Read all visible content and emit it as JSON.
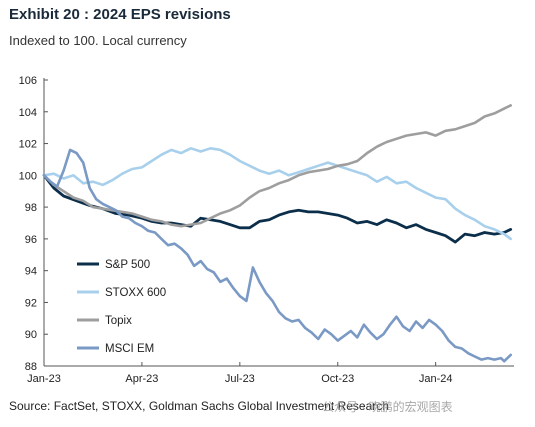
{
  "header": {
    "title": "Exhibit 20 : 2024 EPS revisions",
    "subtitle": "Indexed to 100. Local currency"
  },
  "footer": {
    "source": "Source: FactSet, STOXX, Goldman Sachs Global Investment Research",
    "watermark": "公众号 · 晓鹏的宏观图表"
  },
  "chart_data": {
    "type": "line",
    "title": "Exhibit 20 : 2024 EPS revisions",
    "subtitle": "Indexed to 100. Local currency",
    "xlabel": "",
    "ylabel": "",
    "x_ticks": [
      {
        "t": 0,
        "label": "Jan-23"
      },
      {
        "t": 3,
        "label": "Apr-23"
      },
      {
        "t": 6,
        "label": "Jul-23"
      },
      {
        "t": 9,
        "label": "Oct-23"
      },
      {
        "t": 12,
        "label": "Jan-24"
      }
    ],
    "xlim": [
      0,
      14.4
    ],
    "ylim": [
      88,
      106
    ],
    "y_ticks": [
      88,
      90,
      92,
      94,
      96,
      98,
      100,
      102,
      104,
      106
    ],
    "grid": false,
    "legend_position": "left-bottom",
    "series": [
      {
        "name": "S&P 500",
        "color": "#0b2e4a",
        "width": 2.8,
        "points": [
          [
            0,
            100.0
          ],
          [
            0.3,
            99.2
          ],
          [
            0.6,
            98.7
          ],
          [
            1.0,
            98.4
          ],
          [
            1.4,
            98.1
          ],
          [
            1.8,
            97.9
          ],
          [
            2.2,
            97.6
          ],
          [
            2.6,
            97.5
          ],
          [
            3.0,
            97.3
          ],
          [
            3.3,
            97.1
          ],
          [
            3.6,
            97.0
          ],
          [
            3.9,
            97.0
          ],
          [
            4.2,
            96.9
          ],
          [
            4.5,
            96.8
          ],
          [
            4.8,
            97.3
          ],
          [
            5.1,
            97.2
          ],
          [
            5.4,
            97.1
          ],
          [
            5.7,
            96.9
          ],
          [
            6.0,
            96.7
          ],
          [
            6.3,
            96.7
          ],
          [
            6.6,
            97.1
          ],
          [
            6.9,
            97.2
          ],
          [
            7.2,
            97.5
          ],
          [
            7.5,
            97.7
          ],
          [
            7.8,
            97.8
          ],
          [
            8.1,
            97.7
          ],
          [
            8.4,
            97.7
          ],
          [
            8.7,
            97.6
          ],
          [
            9.0,
            97.5
          ],
          [
            9.3,
            97.3
          ],
          [
            9.6,
            97.0
          ],
          [
            9.9,
            97.1
          ],
          [
            10.2,
            96.9
          ],
          [
            10.5,
            97.2
          ],
          [
            10.8,
            97.0
          ],
          [
            11.1,
            96.7
          ],
          [
            11.4,
            96.9
          ],
          [
            11.7,
            96.6
          ],
          [
            12.0,
            96.4
          ],
          [
            12.3,
            96.2
          ],
          [
            12.6,
            95.8
          ],
          [
            12.9,
            96.3
          ],
          [
            13.2,
            96.2
          ],
          [
            13.5,
            96.4
          ],
          [
            13.8,
            96.3
          ],
          [
            14.1,
            96.4
          ],
          [
            14.3,
            96.6
          ]
        ]
      },
      {
        "name": "STOXX 600",
        "color": "#a8d0ec",
        "width": 2.6,
        "points": [
          [
            0,
            100.0
          ],
          [
            0.3,
            100.1
          ],
          [
            0.6,
            99.8
          ],
          [
            0.9,
            100.0
          ],
          [
            1.2,
            99.5
          ],
          [
            1.5,
            99.6
          ],
          [
            1.8,
            99.4
          ],
          [
            2.1,
            99.7
          ],
          [
            2.4,
            100.1
          ],
          [
            2.7,
            100.4
          ],
          [
            3.0,
            100.5
          ],
          [
            3.3,
            100.9
          ],
          [
            3.6,
            101.3
          ],
          [
            3.9,
            101.6
          ],
          [
            4.2,
            101.4
          ],
          [
            4.5,
            101.7
          ],
          [
            4.8,
            101.5
          ],
          [
            5.1,
            101.7
          ],
          [
            5.4,
            101.6
          ],
          [
            5.7,
            101.3
          ],
          [
            6.0,
            100.9
          ],
          [
            6.3,
            100.6
          ],
          [
            6.6,
            100.3
          ],
          [
            6.9,
            100.1
          ],
          [
            7.2,
            100.3
          ],
          [
            7.5,
            100.0
          ],
          [
            7.8,
            100.2
          ],
          [
            8.1,
            100.4
          ],
          [
            8.4,
            100.6
          ],
          [
            8.7,
            100.8
          ],
          [
            9.0,
            100.6
          ],
          [
            9.3,
            100.4
          ],
          [
            9.6,
            100.2
          ],
          [
            9.9,
            100.0
          ],
          [
            10.2,
            99.6
          ],
          [
            10.5,
            99.9
          ],
          [
            10.8,
            99.5
          ],
          [
            11.1,
            99.6
          ],
          [
            11.4,
            99.2
          ],
          [
            11.7,
            98.9
          ],
          [
            12.0,
            98.6
          ],
          [
            12.3,
            98.5
          ],
          [
            12.6,
            97.9
          ],
          [
            12.9,
            97.5
          ],
          [
            13.2,
            97.2
          ],
          [
            13.5,
            96.8
          ],
          [
            13.8,
            96.6
          ],
          [
            14.1,
            96.3
          ],
          [
            14.3,
            96.0
          ]
        ]
      },
      {
        "name": "Topix",
        "color": "#9e9e9e",
        "width": 2.6,
        "points": [
          [
            0,
            100.0
          ],
          [
            0.3,
            99.4
          ],
          [
            0.6,
            99.0
          ],
          [
            0.9,
            98.6
          ],
          [
            1.2,
            98.4
          ],
          [
            1.5,
            98.0
          ],
          [
            1.8,
            97.9
          ],
          [
            2.1,
            97.8
          ],
          [
            2.4,
            97.7
          ],
          [
            2.7,
            97.6
          ],
          [
            3.0,
            97.4
          ],
          [
            3.3,
            97.2
          ],
          [
            3.6,
            97.1
          ],
          [
            3.9,
            96.9
          ],
          [
            4.2,
            96.8
          ],
          [
            4.5,
            96.9
          ],
          [
            4.8,
            97.0
          ],
          [
            5.1,
            97.3
          ],
          [
            5.4,
            97.6
          ],
          [
            5.7,
            97.8
          ],
          [
            6.0,
            98.1
          ],
          [
            6.3,
            98.6
          ],
          [
            6.6,
            99.0
          ],
          [
            6.9,
            99.2
          ],
          [
            7.2,
            99.5
          ],
          [
            7.5,
            99.7
          ],
          [
            7.8,
            100.0
          ],
          [
            8.1,
            100.2
          ],
          [
            8.4,
            100.3
          ],
          [
            8.7,
            100.4
          ],
          [
            9.0,
            100.6
          ],
          [
            9.3,
            100.7
          ],
          [
            9.6,
            100.9
          ],
          [
            9.9,
            101.4
          ],
          [
            10.2,
            101.8
          ],
          [
            10.5,
            102.1
          ],
          [
            10.8,
            102.3
          ],
          [
            11.1,
            102.5
          ],
          [
            11.4,
            102.6
          ],
          [
            11.7,
            102.7
          ],
          [
            12.0,
            102.5
          ],
          [
            12.3,
            102.8
          ],
          [
            12.6,
            102.9
          ],
          [
            12.9,
            103.1
          ],
          [
            13.2,
            103.3
          ],
          [
            13.5,
            103.7
          ],
          [
            13.8,
            103.9
          ],
          [
            14.1,
            104.2
          ],
          [
            14.3,
            104.4
          ]
        ]
      },
      {
        "name": "MSCI EM",
        "color": "#7a99c4",
        "width": 2.6,
        "points": [
          [
            0,
            100.0
          ],
          [
            0.2,
            99.6
          ],
          [
            0.4,
            99.3
          ],
          [
            0.6,
            100.3
          ],
          [
            0.8,
            101.6
          ],
          [
            1.0,
            101.4
          ],
          [
            1.2,
            100.8
          ],
          [
            1.4,
            99.2
          ],
          [
            1.6,
            98.5
          ],
          [
            1.8,
            98.2
          ],
          [
            2.0,
            98.0
          ],
          [
            2.2,
            97.8
          ],
          [
            2.4,
            97.4
          ],
          [
            2.6,
            97.3
          ],
          [
            2.8,
            97.0
          ],
          [
            3.0,
            96.8
          ],
          [
            3.2,
            96.5
          ],
          [
            3.4,
            96.4
          ],
          [
            3.6,
            96.0
          ],
          [
            3.8,
            95.6
          ],
          [
            4.0,
            95.7
          ],
          [
            4.2,
            95.4
          ],
          [
            4.4,
            95.0
          ],
          [
            4.6,
            94.3
          ],
          [
            4.8,
            94.6
          ],
          [
            5.0,
            94.1
          ],
          [
            5.2,
            93.9
          ],
          [
            5.4,
            93.3
          ],
          [
            5.6,
            93.5
          ],
          [
            5.8,
            92.9
          ],
          [
            6.0,
            92.4
          ],
          [
            6.2,
            92.1
          ],
          [
            6.4,
            94.2
          ],
          [
            6.6,
            93.3
          ],
          [
            6.8,
            92.6
          ],
          [
            7.0,
            92.1
          ],
          [
            7.2,
            91.4
          ],
          [
            7.4,
            91.0
          ],
          [
            7.6,
            90.8
          ],
          [
            7.8,
            90.9
          ],
          [
            8.0,
            90.4
          ],
          [
            8.2,
            90.1
          ],
          [
            8.4,
            89.7
          ],
          [
            8.6,
            90.3
          ],
          [
            8.8,
            90.0
          ],
          [
            9.0,
            89.6
          ],
          [
            9.2,
            89.9
          ],
          [
            9.4,
            90.2
          ],
          [
            9.6,
            89.8
          ],
          [
            9.8,
            90.6
          ],
          [
            10.0,
            90.1
          ],
          [
            10.2,
            89.7
          ],
          [
            10.4,
            90.0
          ],
          [
            10.6,
            90.6
          ],
          [
            10.8,
            91.1
          ],
          [
            11.0,
            90.5
          ],
          [
            11.2,
            90.2
          ],
          [
            11.4,
            90.8
          ],
          [
            11.6,
            90.4
          ],
          [
            11.8,
            90.9
          ],
          [
            12.0,
            90.6
          ],
          [
            12.2,
            90.2
          ],
          [
            12.4,
            89.6
          ],
          [
            12.6,
            89.2
          ],
          [
            12.8,
            89.1
          ],
          [
            13.0,
            88.8
          ],
          [
            13.2,
            88.6
          ],
          [
            13.4,
            88.4
          ],
          [
            13.6,
            88.5
          ],
          [
            13.8,
            88.4
          ],
          [
            14.0,
            88.5
          ],
          [
            14.1,
            88.3
          ],
          [
            14.3,
            88.7
          ]
        ]
      }
    ]
  }
}
